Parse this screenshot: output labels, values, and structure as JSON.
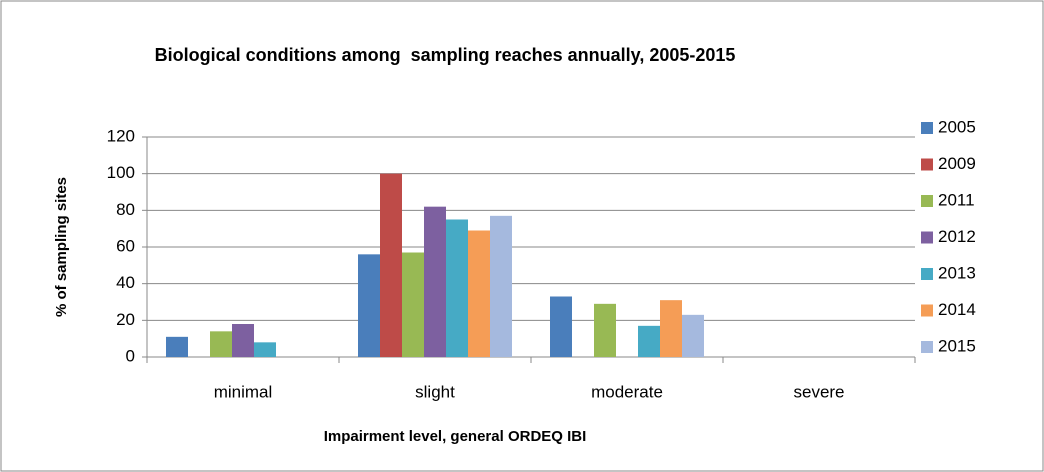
{
  "chart_data": {
    "type": "bar",
    "title": "Biological conditions among  sampling reaches annually, 2005-2015",
    "x_label": "Impairment level, general ORDEQ IBI",
    "y_label": "% of sampling sites",
    "categories": [
      "minimal",
      "slight",
      "moderate",
      "severe"
    ],
    "series": [
      {
        "name": "2005",
        "color": "#4a7ebb",
        "values": [
          11,
          56,
          33,
          0
        ]
      },
      {
        "name": "2009",
        "color": "#be4b48",
        "values": [
          0,
          100,
          0,
          0
        ]
      },
      {
        "name": "2011",
        "color": "#98b954",
        "values": [
          14,
          57,
          29,
          0
        ]
      },
      {
        "name": "2012",
        "color": "#7d60a0",
        "values": [
          18,
          82,
          0,
          0
        ]
      },
      {
        "name": "2013",
        "color": "#46aac5",
        "values": [
          8,
          75,
          17,
          0
        ]
      },
      {
        "name": "2014",
        "color": "#f59d56",
        "values": [
          0,
          69,
          31,
          0
        ]
      },
      {
        "name": "2015",
        "color": "#a5b9de",
        "values": [
          0,
          77,
          23,
          0
        ]
      }
    ],
    "ylim": [
      0,
      120
    ],
    "yticks": [
      0,
      20,
      40,
      60,
      80,
      100,
      120
    ],
    "grid": true,
    "legend": "right"
  }
}
